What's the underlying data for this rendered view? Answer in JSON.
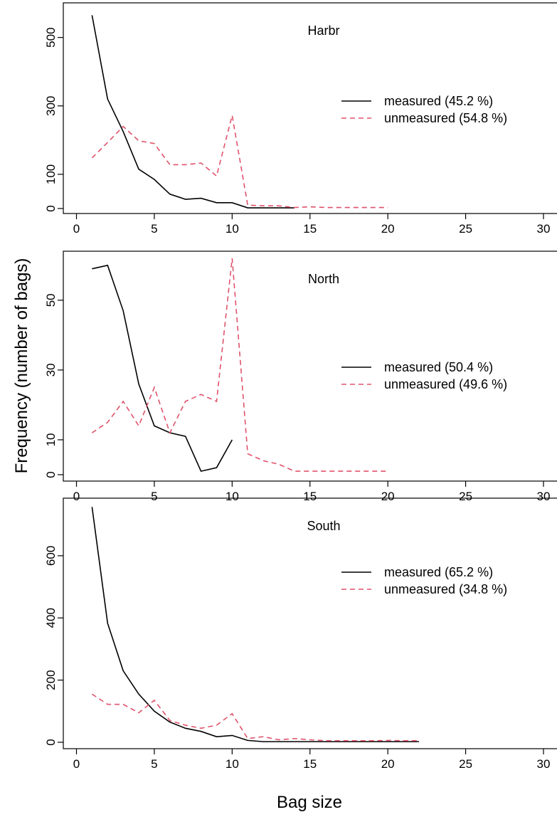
{
  "figure": {
    "ylabel": "Frequency (number of bags)",
    "xlabel": "Bag size"
  },
  "colors": {
    "measured": "#000000",
    "unmeasured": "#DF536B"
  },
  "chart_data": [
    {
      "type": "line",
      "title": "Harbr",
      "xlim": [
        0,
        30
      ],
      "ylim": [
        0,
        570
      ],
      "xticks": [
        0,
        5,
        10,
        15,
        20,
        25,
        30
      ],
      "yticks": [
        0,
        100,
        300,
        500
      ],
      "legend_position": "right",
      "series": [
        {
          "name": "measured (45.2 %)",
          "style": "solid",
          "x": [
            1,
            2,
            3,
            4,
            5,
            6,
            7,
            8,
            9,
            10,
            11,
            12,
            13,
            14
          ],
          "y": [
            565,
            320,
            225,
            115,
            85,
            42,
            27,
            30,
            17,
            17,
            2,
            2,
            2,
            2
          ]
        },
        {
          "name": "unmeasured (54.8 %)",
          "style": "dashed",
          "x": [
            1,
            2,
            3,
            4,
            5,
            6,
            7,
            8,
            9,
            10,
            11,
            12,
            13,
            14,
            15,
            16,
            17,
            18,
            19,
            20
          ],
          "y": [
            148,
            193,
            240,
            198,
            190,
            128,
            128,
            133,
            95,
            272,
            10,
            8,
            8,
            3,
            5,
            3,
            3,
            3,
            3,
            3
          ]
        }
      ]
    },
    {
      "type": "line",
      "title": "North",
      "xlim": [
        0,
        30
      ],
      "ylim": [
        0,
        62
      ],
      "xticks": [
        0,
        5,
        10,
        15,
        20,
        25,
        30
      ],
      "yticks": [
        0,
        10,
        30,
        50
      ],
      "legend_position": "right",
      "series": [
        {
          "name": "measured (50.4 %)",
          "style": "solid",
          "x": [
            1,
            2,
            3,
            4,
            5,
            6,
            7,
            8,
            9,
            10
          ],
          "y": [
            59,
            60,
            47,
            26,
            14,
            12,
            11,
            1,
            2,
            10
          ]
        },
        {
          "name": "unmeasured (49.6 %)",
          "style": "dashed",
          "x": [
            1,
            2,
            3,
            4,
            5,
            6,
            7,
            8,
            9,
            10,
            11,
            12,
            13,
            14,
            15,
            16,
            17,
            18,
            19,
            20
          ],
          "y": [
            12,
            15,
            21,
            14,
            25,
            12,
            21,
            23,
            21,
            62,
            6,
            4,
            3,
            1,
            1,
            1,
            1,
            1,
            1,
            1
          ]
        }
      ]
    },
    {
      "type": "line",
      "title": "South",
      "xlim": [
        0,
        30
      ],
      "ylim": [
        0,
        760
      ],
      "xticks": [
        0,
        5,
        10,
        15,
        20,
        25,
        30
      ],
      "yticks": [
        0,
        200,
        400,
        600
      ],
      "legend_position": "right",
      "series": [
        {
          "name": "measured (65.2 %)",
          "style": "solid",
          "x": [
            1,
            2,
            3,
            4,
            5,
            6,
            7,
            8,
            9,
            10,
            11,
            12,
            13,
            14,
            15,
            16,
            17,
            18,
            19,
            20,
            21,
            22
          ],
          "y": [
            757,
            383,
            230,
            155,
            100,
            65,
            45,
            35,
            18,
            22,
            6,
            2,
            2,
            2,
            2,
            2,
            2,
            2,
            2,
            2,
            2,
            2
          ]
        },
        {
          "name": "unmeasured (34.8 %)",
          "style": "dashed",
          "x": [
            1,
            2,
            3,
            4,
            5,
            6,
            7,
            8,
            9,
            10,
            11,
            12,
            13,
            14,
            15,
            16,
            17,
            18,
            19,
            20,
            21,
            22
          ],
          "y": [
            155,
            122,
            122,
            95,
            135,
            70,
            55,
            45,
            55,
            92,
            12,
            18,
            8,
            12,
            8,
            5,
            5,
            5,
            5,
            6,
            5,
            5
          ]
        }
      ]
    }
  ]
}
